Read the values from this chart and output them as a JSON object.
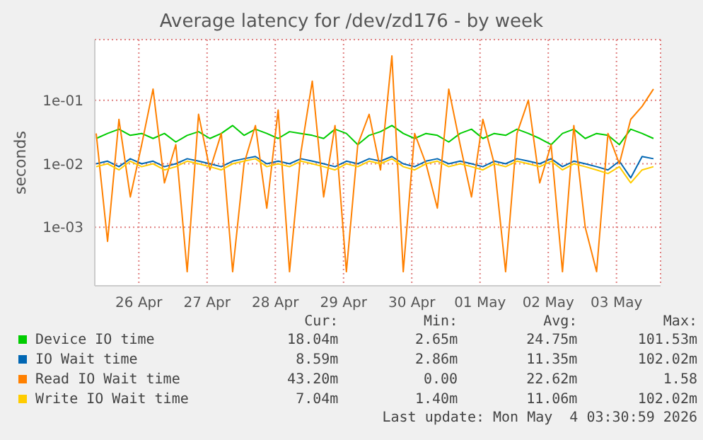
{
  "chart_data": {
    "type": "line",
    "title": "Average latency for /dev/zd176 - by week",
    "ylabel": "seconds",
    "log": "y",
    "grid": true,
    "legend": "bottom",
    "marker": "none",
    "line_style": "solid",
    "xlim": [
      "2026-04-25T20:30",
      "2026-05-04T03:30"
    ],
    "xticks": [
      {
        "value": "2026-04-26T12:00",
        "label": "26 Apr"
      },
      {
        "value": "2026-04-27T12:00",
        "label": "27 Apr"
      },
      {
        "value": "2026-04-28T12:00",
        "label": "28 Apr"
      },
      {
        "value": "2026-04-29T12:00",
        "label": "29 Apr"
      },
      {
        "value": "2026-04-30T12:00",
        "label": "30 Apr"
      },
      {
        "value": "2026-05-01T12:00",
        "label": "01 May"
      },
      {
        "value": "2026-05-02T12:00",
        "label": "02 May"
      },
      {
        "value": "2026-05-03T12:00",
        "label": "03 May"
      }
    ],
    "ylim": [
      0.00012,
      0.9
    ],
    "yticks": [
      {
        "value": 0.001,
        "label": "1e-03"
      },
      {
        "value": 0.01,
        "label": "1e-02"
      },
      {
        "value": 0.1,
        "label": "1e-01"
      }
    ],
    "x": [
      "2026-04-25T21:00",
      "2026-04-26T01:00",
      "2026-04-26T05:00",
      "2026-04-26T09:00",
      "2026-04-26T13:00",
      "2026-04-26T17:00",
      "2026-04-26T21:00",
      "2026-04-27T01:00",
      "2026-04-27T05:00",
      "2026-04-27T09:00",
      "2026-04-27T13:00",
      "2026-04-27T17:00",
      "2026-04-27T21:00",
      "2026-04-28T01:00",
      "2026-04-28T05:00",
      "2026-04-28T09:00",
      "2026-04-28T13:00",
      "2026-04-28T17:00",
      "2026-04-28T21:00",
      "2026-04-29T01:00",
      "2026-04-29T05:00",
      "2026-04-29T09:00",
      "2026-04-29T13:00",
      "2026-04-29T17:00",
      "2026-04-29T21:00",
      "2026-04-30T01:00",
      "2026-04-30T05:00",
      "2026-04-30T09:00",
      "2026-04-30T13:00",
      "2026-04-30T17:00",
      "2026-04-30T21:00",
      "2026-05-01T01:00",
      "2026-05-01T05:00",
      "2026-05-01T09:00",
      "2026-05-01T13:00",
      "2026-05-01T17:00",
      "2026-05-01T21:00",
      "2026-05-02T01:00",
      "2026-05-02T05:00",
      "2026-05-02T09:00",
      "2026-05-02T13:00",
      "2026-05-02T17:00",
      "2026-05-02T21:00",
      "2026-05-03T01:00",
      "2026-05-03T05:00",
      "2026-05-03T09:00",
      "2026-05-03T13:00",
      "2026-05-03T17:00",
      "2026-05-03T21:00",
      "2026-05-04T01:00"
    ],
    "series": [
      {
        "name": "Device IO time",
        "color": "#00cc00",
        "values": [
          0.025,
          0.03,
          0.035,
          0.028,
          0.03,
          0.025,
          0.03,
          0.022,
          0.028,
          0.032,
          0.025,
          0.03,
          0.04,
          0.028,
          0.035,
          0.03,
          0.025,
          0.032,
          0.03,
          0.028,
          0.025,
          0.035,
          0.03,
          0.02,
          0.028,
          0.032,
          0.04,
          0.03,
          0.025,
          0.03,
          0.028,
          0.022,
          0.03,
          0.035,
          0.025,
          0.03,
          0.028,
          0.035,
          0.03,
          0.025,
          0.02,
          0.03,
          0.035,
          0.025,
          0.03,
          0.028,
          0.02,
          0.035,
          0.03,
          0.025
        ]
      },
      {
        "name": "IO Wait time",
        "color": "#0066b3",
        "values": [
          0.01,
          0.011,
          0.009,
          0.012,
          0.01,
          0.011,
          0.009,
          0.01,
          0.012,
          0.011,
          0.01,
          0.009,
          0.011,
          0.012,
          0.013,
          0.01,
          0.011,
          0.01,
          0.012,
          0.011,
          0.01,
          0.009,
          0.011,
          0.01,
          0.012,
          0.011,
          0.013,
          0.01,
          0.009,
          0.011,
          0.012,
          0.01,
          0.011,
          0.01,
          0.009,
          0.011,
          0.01,
          0.012,
          0.011,
          0.01,
          0.012,
          0.009,
          0.011,
          0.01,
          0.009,
          0.008,
          0.011,
          0.006,
          0.013,
          0.012
        ]
      },
      {
        "name": "Read IO Wait time",
        "color": "#ff8000",
        "values": [
          0.03,
          0.0006,
          0.05,
          0.003,
          0.02,
          0.15,
          0.005,
          0.02,
          0.0002,
          0.06,
          0.008,
          0.03,
          0.0002,
          0.01,
          0.04,
          0.002,
          0.07,
          0.0002,
          0.015,
          0.2,
          0.003,
          0.04,
          0.0002,
          0.02,
          0.06,
          0.008,
          0.5,
          0.0002,
          0.03,
          0.01,
          0.002,
          0.15,
          0.02,
          0.003,
          0.05,
          0.01,
          0.0002,
          0.03,
          0.1,
          0.005,
          0.02,
          0.0002,
          0.04,
          0.001,
          0.0002,
          0.03,
          0.01,
          0.05,
          0.08,
          0.15
        ]
      },
      {
        "name": "Write IO Wait time",
        "color": "#ffcc00",
        "values": [
          0.009,
          0.01,
          0.008,
          0.011,
          0.009,
          0.01,
          0.008,
          0.009,
          0.011,
          0.01,
          0.009,
          0.008,
          0.01,
          0.011,
          0.012,
          0.009,
          0.01,
          0.009,
          0.011,
          0.01,
          0.009,
          0.008,
          0.01,
          0.009,
          0.011,
          0.01,
          0.012,
          0.009,
          0.008,
          0.01,
          0.011,
          0.009,
          0.01,
          0.009,
          0.008,
          0.01,
          0.009,
          0.011,
          0.01,
          0.009,
          0.011,
          0.008,
          0.01,
          0.009,
          0.008,
          0.007,
          0.009,
          0.005,
          0.008,
          0.009
        ]
      }
    ],
    "annotations": [
      "Cur:",
      "Min:",
      "Avg:",
      "Max:",
      "18.04m",
      "2.65m",
      "24.75m",
      "101.53m",
      "8.59m",
      "2.86m",
      "11.35m",
      "102.02m",
      "43.20m",
      "0.00",
      "22.62m",
      "1.58",
      "7.04m",
      "1.40m",
      "11.06m",
      "102.02m",
      "Last update: Mon May  4 03:30:59 2026"
    ]
  }
}
